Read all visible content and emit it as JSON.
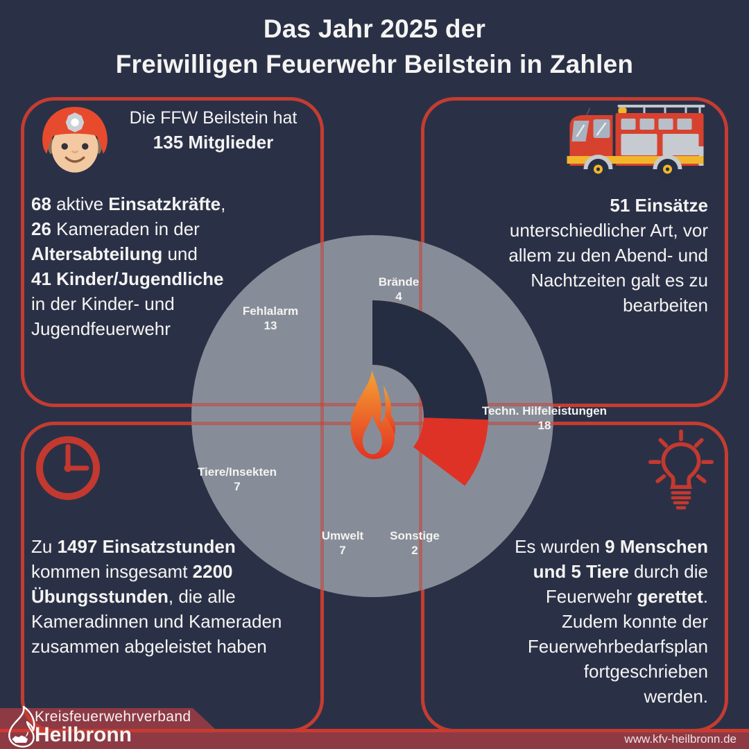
{
  "title": {
    "line1": "Das Jahr 2025 der",
    "line2": "Freiwilligen Feuerwehr Beilstein in Zahlen"
  },
  "panels": {
    "members": {
      "icon": "firefighter-icon",
      "header_line1": "Die FFW Beilstein hat",
      "header_line2": "135 Mitglieder",
      "body": [
        [
          {
            "t": "68",
            "b": 1
          },
          {
            "t": " aktive ",
            "b": 0
          },
          {
            "t": "Einsatzkräfte",
            "b": 1
          },
          {
            "t": ",",
            "b": 0
          }
        ],
        [
          {
            "t": "26",
            "b": 1
          },
          {
            "t": " Kameraden in der",
            "b": 0
          }
        ],
        [
          {
            "t": "Altersabteilung",
            "b": 1
          },
          {
            "t": " und",
            "b": 0
          }
        ],
        [
          {
            "t": "41 Kinder/Jugendliche",
            "b": 1
          }
        ],
        [
          {
            "t": "in der Kinder- und",
            "b": 0
          }
        ],
        [
          {
            "t": "Jugendfeuerwehr",
            "b": 0
          }
        ]
      ]
    },
    "missions": {
      "icon": "fire-truck-icon",
      "body": [
        [
          {
            "t": "51 Einsätze",
            "b": 1
          }
        ],
        [
          {
            "t": "unterschiedlicher Art, vor",
            "b": 0
          }
        ],
        [
          {
            "t": "allem zu den Abend- und",
            "b": 0
          }
        ],
        [
          {
            "t": "Nachtzeiten galt es zu",
            "b": 0
          }
        ],
        [
          {
            "t": "bearbeiten",
            "b": 0
          }
        ]
      ]
    },
    "hours": {
      "icon": "clock-icon",
      "body": [
        [
          {
            "t": "Zu ",
            "b": 0
          },
          {
            "t": "1497 Einsatzstunden",
            "b": 1
          }
        ],
        [
          {
            "t": "kommen insgesamt ",
            "b": 0
          },
          {
            "t": "2200",
            "b": 1
          }
        ],
        [
          {
            "t": "Übungsstunden",
            "b": 1
          },
          {
            "t": ", die alle",
            "b": 0
          }
        ],
        [
          {
            "t": "Kameradinnen und Kameraden",
            "b": 0
          }
        ],
        [
          {
            "t": "zusammen abgeleistet haben",
            "b": 0
          }
        ]
      ]
    },
    "rescues": {
      "icon": "lightbulb-icon",
      "body": [
        [
          {
            "t": "Es wurden ",
            "b": 0
          },
          {
            "t": "9 Menschen",
            "b": 1
          }
        ],
        [
          {
            "t": "und 5 Tiere",
            "b": 1
          },
          {
            "t": " durch die",
            "b": 0
          }
        ],
        [
          {
            "t": "Feuerwehr ",
            "b": 0
          },
          {
            "t": "gerettet",
            "b": 1
          },
          {
            "t": ".",
            "b": 0
          }
        ],
        [
          {
            "t": "Zudem konnte der",
            "b": 0
          }
        ],
        [
          {
            "t": "Feuerwehrbedarfsplan",
            "b": 0
          }
        ],
        [
          {
            "t": "fortgeschrieben",
            "b": 0
          }
        ],
        [
          {
            "t": "werden.",
            "b": 0
          }
        ]
      ]
    }
  },
  "chart_data": {
    "type": "pie",
    "subtype": "donut",
    "title": "Einsätze 2025 nach Art",
    "categories": [
      "Brände",
      "Techn. Hilfeleistungen",
      "Sonstige",
      "Umwelt",
      "Tiere/Insekten",
      "Fehlalarm"
    ],
    "values": [
      4,
      18,
      2,
      7,
      7,
      13
    ],
    "total": 51,
    "colors": [
      "#f04e23",
      "#df3226",
      "#f59e2b",
      "#ef4b26",
      "#f59e2b",
      "#252d43"
    ],
    "start_angle_deg": 0,
    "direction": "clockwise",
    "center_icon": "flame-icon",
    "legend": "none"
  },
  "footer": {
    "logo_icon": "kfv-flame-lion-logo",
    "org_line1": "Kreisfeuerwehrverband",
    "org_line2": "Heilbronn",
    "url": "www.kfv-heilbronn.de"
  },
  "colors": {
    "background": "#2a3147",
    "panel_border_red": "#c53c31",
    "bright_line_red": "#d03a2e",
    "footer_maroon": "#8d3a45",
    "circle_gray": "#878d98",
    "text": "#f5f4f2",
    "flame_gradient_top": "#f6a233",
    "flame_gradient_bottom": "#e23322"
  }
}
